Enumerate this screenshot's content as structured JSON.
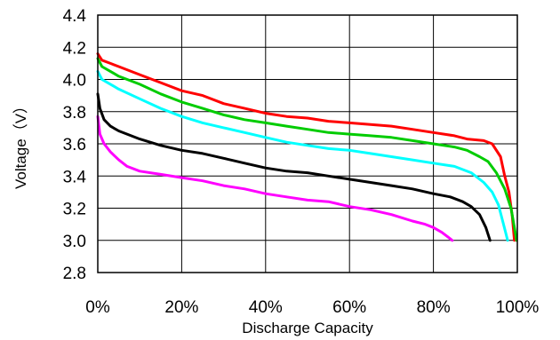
{
  "chart_data": {
    "type": "line",
    "title": "",
    "xlabel": "Discharge Capacity",
    "ylabel": "Voltage（V）",
    "xlim": [
      0,
      100
    ],
    "ylim": [
      2.8,
      4.4
    ],
    "grid": true,
    "legend": "none",
    "x_tick_labels": [
      "0%",
      "20%",
      "40%",
      "60%",
      "80%",
      "100%"
    ],
    "x_tick_values": [
      0,
      20,
      40,
      60,
      80,
      100
    ],
    "y_tick_labels": [
      "2.8",
      "3.0",
      "3.2",
      "3.4",
      "3.6",
      "3.8",
      "4.0",
      "4.2",
      "4.4"
    ],
    "y_tick_values": [
      2.8,
      3.0,
      3.2,
      3.4,
      3.6,
      3.8,
      4.0,
      4.2,
      4.4
    ],
    "series": [
      {
        "color": "#ff0000",
        "points": [
          [
            0,
            4.16
          ],
          [
            1,
            4.12
          ],
          [
            3,
            4.1
          ],
          [
            5,
            4.08
          ],
          [
            10,
            4.03
          ],
          [
            15,
            3.98
          ],
          [
            20,
            3.93
          ],
          [
            25,
            3.9
          ],
          [
            30,
            3.85
          ],
          [
            35,
            3.82
          ],
          [
            40,
            3.79
          ],
          [
            45,
            3.77
          ],
          [
            50,
            3.76
          ],
          [
            55,
            3.74
          ],
          [
            60,
            3.73
          ],
          [
            65,
            3.72
          ],
          [
            70,
            3.71
          ],
          [
            75,
            3.69
          ],
          [
            80,
            3.67
          ],
          [
            85,
            3.65
          ],
          [
            88,
            3.63
          ],
          [
            92,
            3.62
          ],
          [
            94,
            3.6
          ],
          [
            96,
            3.52
          ],
          [
            97,
            3.4
          ],
          [
            98,
            3.3
          ],
          [
            98.8,
            3.15
          ],
          [
            99.3,
            3.0
          ]
        ]
      },
      {
        "color": "#00cc00",
        "points": [
          [
            0,
            4.13
          ],
          [
            1,
            4.08
          ],
          [
            3,
            4.05
          ],
          [
            5,
            4.02
          ],
          [
            10,
            3.97
          ],
          [
            15,
            3.91
          ],
          [
            20,
            3.86
          ],
          [
            25,
            3.82
          ],
          [
            30,
            3.78
          ],
          [
            35,
            3.75
          ],
          [
            40,
            3.73
          ],
          [
            45,
            3.71
          ],
          [
            50,
            3.69
          ],
          [
            55,
            3.67
          ],
          [
            60,
            3.66
          ],
          [
            65,
            3.65
          ],
          [
            70,
            3.64
          ],
          [
            75,
            3.62
          ],
          [
            80,
            3.6
          ],
          [
            85,
            3.58
          ],
          [
            88,
            3.56
          ],
          [
            91,
            3.52
          ],
          [
            93,
            3.49
          ],
          [
            95,
            3.42
          ],
          [
            97,
            3.32
          ],
          [
            98.5,
            3.2
          ],
          [
            99.3,
            3.08
          ],
          [
            99.8,
            3.0
          ]
        ]
      },
      {
        "color": "#00ffff",
        "points": [
          [
            0,
            4.05
          ],
          [
            1,
            4.0
          ],
          [
            3,
            3.97
          ],
          [
            5,
            3.94
          ],
          [
            10,
            3.88
          ],
          [
            15,
            3.82
          ],
          [
            20,
            3.77
          ],
          [
            25,
            3.73
          ],
          [
            30,
            3.7
          ],
          [
            35,
            3.67
          ],
          [
            40,
            3.64
          ],
          [
            45,
            3.61
          ],
          [
            50,
            3.59
          ],
          [
            55,
            3.57
          ],
          [
            60,
            3.56
          ],
          [
            65,
            3.54
          ],
          [
            70,
            3.52
          ],
          [
            75,
            3.5
          ],
          [
            80,
            3.48
          ],
          [
            85,
            3.46
          ],
          [
            89,
            3.42
          ],
          [
            92,
            3.36
          ],
          [
            94,
            3.3
          ],
          [
            95.5,
            3.22
          ],
          [
            96.5,
            3.12
          ],
          [
            97.2,
            3.05
          ],
          [
            97.7,
            3.0
          ]
        ]
      },
      {
        "color": "#000000",
        "points": [
          [
            0,
            3.91
          ],
          [
            0.5,
            3.82
          ],
          [
            1.5,
            3.75
          ],
          [
            3,
            3.71
          ],
          [
            5,
            3.68
          ],
          [
            10,
            3.63
          ],
          [
            15,
            3.59
          ],
          [
            20,
            3.56
          ],
          [
            25,
            3.54
          ],
          [
            30,
            3.51
          ],
          [
            35,
            3.48
          ],
          [
            40,
            3.45
          ],
          [
            45,
            3.43
          ],
          [
            50,
            3.42
          ],
          [
            55,
            3.4
          ],
          [
            60,
            3.38
          ],
          [
            65,
            3.36
          ],
          [
            70,
            3.34
          ],
          [
            75,
            3.32
          ],
          [
            80,
            3.29
          ],
          [
            84,
            3.27
          ],
          [
            87,
            3.24
          ],
          [
            89,
            3.21
          ],
          [
            91,
            3.16
          ],
          [
            92.5,
            3.08
          ],
          [
            93.5,
            3.0
          ]
        ]
      },
      {
        "color": "#ff00ff",
        "points": [
          [
            0,
            3.77
          ],
          [
            0.5,
            3.66
          ],
          [
            1.5,
            3.6
          ],
          [
            3,
            3.55
          ],
          [
            5,
            3.5
          ],
          [
            7,
            3.46
          ],
          [
            10,
            3.43
          ],
          [
            15,
            3.41
          ],
          [
            20,
            3.39
          ],
          [
            25,
            3.37
          ],
          [
            30,
            3.34
          ],
          [
            35,
            3.32
          ],
          [
            40,
            3.29
          ],
          [
            45,
            3.27
          ],
          [
            50,
            3.25
          ],
          [
            55,
            3.24
          ],
          [
            60,
            3.21
          ],
          [
            65,
            3.19
          ],
          [
            70,
            3.16
          ],
          [
            75,
            3.12
          ],
          [
            78,
            3.1
          ],
          [
            80,
            3.08
          ],
          [
            82,
            3.05
          ],
          [
            83.5,
            3.02
          ],
          [
            84.5,
            3.0
          ]
        ]
      }
    ]
  }
}
